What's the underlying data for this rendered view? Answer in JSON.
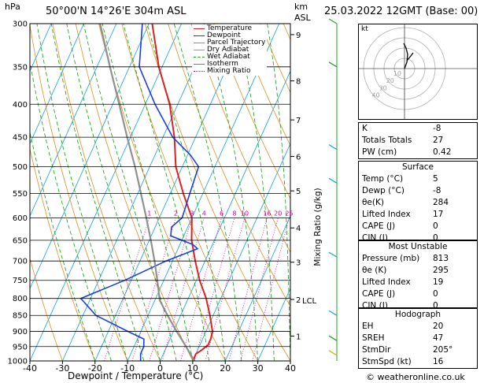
{
  "header": {
    "hpa_unit": "hPa",
    "location": "50°00'N  14°26'E  304m  ASL",
    "km_unit": "km",
    "asl_unit": "ASL",
    "datetime": "25.03.2022  12GMT  (Base: 00)"
  },
  "footer": {
    "copyright": "© weatheronline.co.uk"
  },
  "chart_data": {
    "type": "skew-t",
    "xlabel": "Dewpoint / Temperature (°C)",
    "mixing_axis_label": "Mixing Ratio (g/kg)",
    "x_ticks": [
      -40,
      -30,
      -20,
      -10,
      0,
      10,
      20,
      30,
      40
    ],
    "x_tick_labels": [
      "-40",
      "-30",
      "-20",
      "-10",
      "0",
      "10",
      "20",
      "30",
      "40"
    ],
    "pressure_levels": [
      300,
      350,
      400,
      450,
      500,
      550,
      600,
      650,
      700,
      750,
      800,
      850,
      900,
      950,
      1000
    ],
    "pressure_labels": [
      "300",
      "350",
      "400",
      "450",
      "500",
      "550",
      "600",
      "650",
      "700",
      "750",
      "800",
      "850",
      "900",
      "950",
      "1000"
    ],
    "km_ticks": [
      {
        "km": 1,
        "p": 915,
        "label": "1"
      },
      {
        "km": 2,
        "p": 803,
        "label": "2"
      },
      {
        "km": 3,
        "p": 703,
        "label": "3"
      },
      {
        "km": 4,
        "p": 622,
        "label": "4"
      },
      {
        "km": 5,
        "p": 545,
        "label": "5"
      },
      {
        "km": 6,
        "p": 482,
        "label": "6"
      },
      {
        "km": 7,
        "p": 423,
        "label": "7"
      },
      {
        "km": 8,
        "p": 368,
        "label": "8"
      },
      {
        "km": 9,
        "p": 312,
        "label": "9"
      }
    ],
    "lcl": {
      "p": 805,
      "label": "LCL"
    },
    "mixing_ratio_values": [
      1,
      2,
      3,
      4,
      6,
      8,
      10,
      16,
      20,
      25
    ],
    "mixing_ratio_labels": [
      "1",
      "2",
      "3",
      "4",
      "6",
      "8",
      "10",
      "16",
      "20",
      "25"
    ],
    "legend": [
      {
        "name": "Temperature",
        "color": "#e02020"
      },
      {
        "name": "Dewpoint",
        "color": "#1a3fe0"
      },
      {
        "name": "Parcel Trajectory",
        "color": "#909090"
      },
      {
        "name": "Dry Adiabat",
        "color": "#e09020"
      },
      {
        "name": "Wet Adiabat",
        "color": "#10a010"
      },
      {
        "name": "Isotherm",
        "color": "#10a0e0"
      },
      {
        "name": "Mixing Ratio",
        "color": "#d000a0"
      }
    ],
    "series": [
      {
        "name": "Temperature",
        "points": [
          [
            1000,
            10.5
          ],
          [
            990,
            10
          ],
          [
            975,
            10
          ],
          [
            965,
            11
          ],
          [
            945,
            12.5
          ],
          [
            925,
            12.5
          ],
          [
            900,
            12
          ],
          [
            850,
            9
          ],
          [
            800,
            5.5
          ],
          [
            750,
            1
          ],
          [
            700,
            -3
          ],
          [
            650,
            -7
          ],
          [
            600,
            -10
          ],
          [
            550,
            -16
          ],
          [
            500,
            -22
          ],
          [
            450,
            -26.5
          ],
          [
            400,
            -32.5
          ],
          [
            350,
            -41
          ],
          [
            300,
            -49
          ]
        ]
      },
      {
        "name": "Dewpoint",
        "points": [
          [
            1000,
            -6
          ],
          [
            975,
            -7
          ],
          [
            950,
            -7
          ],
          [
            925,
            -8
          ],
          [
            900,
            -14
          ],
          [
            850,
            -26
          ],
          [
            800,
            -33
          ],
          [
            750,
            -22
          ],
          [
            700,
            -12
          ],
          [
            670,
            -4
          ],
          [
            660,
            -6
          ],
          [
            640,
            -14
          ],
          [
            620,
            -15
          ],
          [
            600,
            -13
          ],
          [
            550,
            -14
          ],
          [
            500,
            -15
          ],
          [
            480,
            -19
          ],
          [
            450,
            -27
          ],
          [
            400,
            -37
          ],
          [
            350,
            -47
          ],
          [
            300,
            -52
          ]
        ]
      },
      {
        "name": "Parcel Trajectory",
        "points": [
          [
            1000,
            10.5
          ],
          [
            950,
            6
          ],
          [
            900,
            1
          ],
          [
            850,
            -4
          ],
          [
            805,
            -8.5
          ],
          [
            750,
            -12
          ],
          [
            700,
            -15.5
          ],
          [
            650,
            -19.5
          ],
          [
            600,
            -24
          ],
          [
            550,
            -29
          ],
          [
            500,
            -34.5
          ],
          [
            450,
            -41
          ],
          [
            400,
            -48
          ],
          [
            350,
            -56
          ],
          [
            300,
            -65
          ]
        ]
      }
    ],
    "index_panel": {
      "rows": [
        {
          "label": "K",
          "value": "-8"
        },
        {
          "label": "Totals Totals",
          "value": "27"
        },
        {
          "label": "PW (cm)",
          "value": "0.42"
        }
      ],
      "surface": {
        "title": "Surface",
        "rows": [
          {
            "label": "Temp (°C)",
            "value": "5"
          },
          {
            "label": "Dewp (°C)",
            "value": "-8"
          },
          {
            "label": "θe(K)",
            "value": "284"
          },
          {
            "label": "Lifted Index",
            "value": "17"
          },
          {
            "label": "CAPE (J)",
            "value": "0"
          },
          {
            "label": "CIN (J)",
            "value": "0"
          }
        ]
      },
      "most_unstable": {
        "title": "Most Unstable",
        "rows": [
          {
            "label": "Pressure (mb)",
            "value": "813"
          },
          {
            "label": "θe (K)",
            "value": "295"
          },
          {
            "label": "Lifted Index",
            "value": "19"
          },
          {
            "label": "CAPE (J)",
            "value": "0"
          },
          {
            "label": "CIN (J)",
            "value": "0"
          }
        ]
      },
      "hodograph": {
        "title": "Hodograph",
        "rows": [
          {
            "label": "EH",
            "value": "20"
          },
          {
            "label": "SREH",
            "value": "47"
          },
          {
            "label": "StmDir",
            "value": "205°"
          },
          {
            "label": "StmSpd (kt)",
            "value": "16"
          }
        ]
      }
    },
    "hodograph_plot": {
      "unit_label": "kt",
      "ring_labels": [
        "10",
        "20",
        "30",
        "40"
      ],
      "ring_speeds_kt": [
        10,
        20,
        30,
        40
      ]
    }
  }
}
